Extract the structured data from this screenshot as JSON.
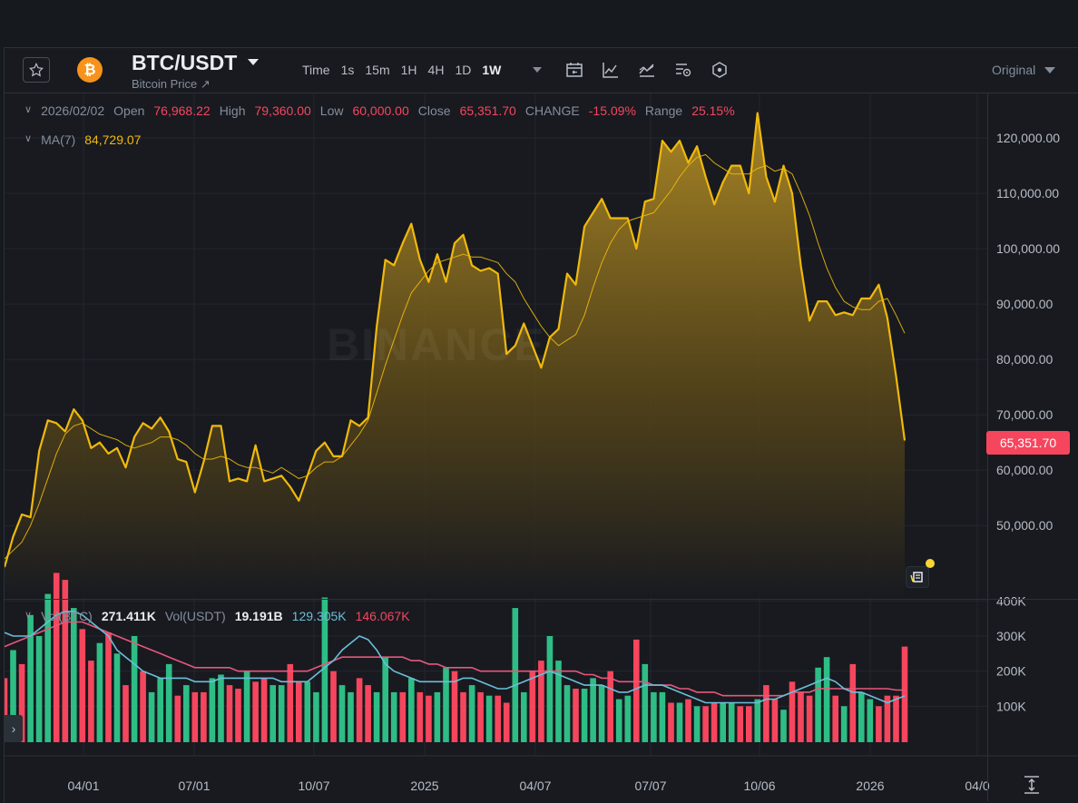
{
  "toolbar": {
    "pair": "BTC/USDT",
    "subtitle": "Bitcoin Price ↗",
    "coin_symbol": "₿",
    "intervals": [
      "Time",
      "1s",
      "15m",
      "1H",
      "4H",
      "1D",
      "1W"
    ],
    "active_interval": "1W",
    "price_type": "Original",
    "icons": [
      "star-icon",
      "bitcoin-icon",
      "calendar-replay-icon",
      "indicator-icon",
      "chart-type-icon",
      "settings-icon",
      "hexagon-icon",
      "chevron-down-icon"
    ]
  },
  "ohlc": {
    "date": "2026/02/02",
    "open_label": "Open",
    "open": "76,968.22",
    "high_label": "High",
    "high": "79,360.00",
    "low_label": "Low",
    "low": "60,000.00",
    "close_label": "Close",
    "close": "65,351.70",
    "change_label": "CHANGE",
    "change": "-15.09%",
    "range_label": "Range",
    "range": "25.15%"
  },
  "ma": {
    "label": "MA(7)",
    "value": "84,729.07"
  },
  "volume_legend": {
    "label": "Vol(BTC)",
    "btc": "271.411K",
    "usdt_label": "Vol(USDT)",
    "usdt": "19.191B",
    "ma1": "129.305K",
    "ma2": "146.067K"
  },
  "current_price": "65,351.70",
  "watermark": "BINANCE",
  "colors": {
    "up": "#2ebd85",
    "down": "#f6465d",
    "accent": "#f0b90b",
    "ma_blue": "#6bbfd9",
    "ma_pink": "#e8577b"
  },
  "chart_data": [
    {
      "type": "area",
      "y_ticks": [
        "120,000.00",
        "110,000.00",
        "100,000.00",
        "90,000.00",
        "80,000.00",
        "70,000.00",
        "60,000.00",
        "50,000.00"
      ],
      "x_ticks": [
        "04/01",
        "07/01",
        "10/07",
        "2025",
        "04/07",
        "07/07",
        "10/06",
        "2026",
        "04/0"
      ],
      "ylim": [
        40000,
        125000
      ],
      "series": [
        {
          "values": [
            42500,
            48000,
            52000,
            51500,
            63500,
            69000,
            68500,
            67000,
            71000,
            69000,
            64000,
            65000,
            63000,
            64000,
            60500,
            66000,
            68500,
            67500,
            69500,
            67000,
            62000,
            61500,
            56000,
            61500,
            68000,
            68000,
            58000,
            58500,
            58000,
            64500,
            58000,
            58500,
            59000,
            57000,
            54500,
            59000,
            63500,
            65000,
            62500,
            62500,
            69000,
            68000,
            69500,
            86000,
            98000,
            97000,
            101000,
            104500,
            98000,
            94000,
            99000,
            94000,
            101000,
            102500,
            97000,
            96000,
            96500,
            95500,
            81000,
            82500,
            86500,
            82500,
            78500,
            84000,
            85500,
            95500,
            93500,
            104000,
            106500,
            109000,
            105500,
            105500,
            105500,
            100000,
            108500,
            109000,
            119500,
            117500,
            119500,
            115500,
            118500,
            113000,
            108000,
            112000,
            115000,
            115000,
            110000,
            124500,
            113000,
            108500,
            115000,
            110000,
            97000,
            87000,
            90500,
            90500,
            88000,
            88500,
            88000,
            91000,
            91000,
            93500,
            87500,
            77000,
            65351.7
          ]
        },
        {
          "values": [
            44000,
            45500,
            47000,
            50000,
            54000,
            58500,
            63000,
            66500,
            68000,
            68500,
            67500,
            66500,
            66000,
            65500,
            64500,
            64000,
            64500,
            65000,
            66000,
            66000,
            65500,
            64500,
            63000,
            62000,
            62000,
            62500,
            62000,
            61000,
            60500,
            60500,
            60000,
            59500,
            60500,
            59500,
            58500,
            59000,
            60500,
            61500,
            61500,
            62500,
            64500,
            66500,
            69000,
            74000,
            79000,
            83500,
            88000,
            92000,
            94000,
            96000,
            97500,
            98000,
            98500,
            99000,
            98500,
            98500,
            98000,
            97500,
            95500,
            94000,
            91000,
            88500,
            86000,
            84000,
            82500,
            83500,
            84500,
            88000,
            93000,
            97500,
            101000,
            103500,
            105000,
            105500,
            106000,
            106500,
            108500,
            110500,
            113000,
            115000,
            116500,
            117000,
            115500,
            114500,
            113500,
            113500,
            113500,
            114500,
            115000,
            114000,
            114500,
            113500,
            110000,
            106000,
            101000,
            96500,
            93000,
            90500,
            89500,
            89000,
            89000,
            90500,
            91000,
            88000,
            84729.07
          ]
        }
      ]
    },
    {
      "type": "bar",
      "y_ticks": [
        "400K",
        "300K",
        "200K",
        "100K"
      ],
      "ylim": [
        0,
        450000
      ],
      "volumes": [
        180000,
        260000,
        220000,
        360000,
        300000,
        420000,
        480000,
        460000,
        380000,
        320000,
        230000,
        280000,
        310000,
        250000,
        160000,
        300000,
        200000,
        140000,
        180000,
        220000,
        130000,
        160000,
        140000,
        140000,
        180000,
        190000,
        160000,
        150000,
        200000,
        170000,
        180000,
        160000,
        160000,
        220000,
        170000,
        170000,
        140000,
        410000,
        200000,
        160000,
        140000,
        180000,
        160000,
        140000,
        240000,
        140000,
        140000,
        180000,
        140000,
        130000,
        140000,
        210000,
        200000,
        140000,
        160000,
        140000,
        130000,
        130000,
        110000,
        380000,
        140000,
        200000,
        230000,
        300000,
        230000,
        160000,
        150000,
        150000,
        180000,
        160000,
        200000,
        120000,
        130000,
        290000,
        220000,
        140000,
        140000,
        110000,
        110000,
        120000,
        100000,
        100000,
        110000,
        110000,
        110000,
        100000,
        100000,
        120000,
        160000,
        120000,
        90000,
        170000,
        140000,
        130000,
        210000,
        240000,
        130000,
        100000,
        220000,
        140000,
        120000,
        100000,
        130000,
        130000,
        270000
      ],
      "ma_blue": [
        310000,
        300000,
        300000,
        300000,
        320000,
        340000,
        360000,
        370000,
        370000,
        360000,
        340000,
        320000,
        300000,
        260000,
        240000,
        220000,
        200000,
        190000,
        180000,
        180000,
        180000,
        180000,
        170000,
        170000,
        170000,
        180000,
        180000,
        180000,
        180000,
        180000,
        180000,
        180000,
        170000,
        170000,
        170000,
        170000,
        190000,
        210000,
        230000,
        260000,
        280000,
        300000,
        290000,
        260000,
        220000,
        200000,
        190000,
        180000,
        170000,
        170000,
        170000,
        170000,
        170000,
        180000,
        180000,
        170000,
        160000,
        150000,
        150000,
        160000,
        170000,
        180000,
        190000,
        200000,
        190000,
        180000,
        170000,
        160000,
        160000,
        160000,
        150000,
        140000,
        140000,
        150000,
        160000,
        160000,
        160000,
        150000,
        140000,
        130000,
        120000,
        110000,
        110000,
        110000,
        110000,
        110000,
        110000,
        110000,
        120000,
        120000,
        130000,
        140000,
        150000,
        160000,
        170000,
        180000,
        170000,
        150000,
        140000,
        140000,
        130000,
        120000,
        110000,
        120000,
        129305
      ],
      "ma_pink": [
        270000,
        280000,
        290000,
        300000,
        310000,
        320000,
        330000,
        340000,
        340000,
        340000,
        330000,
        320000,
        310000,
        300000,
        290000,
        280000,
        270000,
        260000,
        250000,
        240000,
        230000,
        220000,
        210000,
        210000,
        210000,
        210000,
        210000,
        200000,
        200000,
        200000,
        200000,
        200000,
        200000,
        200000,
        200000,
        200000,
        210000,
        220000,
        230000,
        240000,
        240000,
        240000,
        240000,
        240000,
        240000,
        240000,
        240000,
        230000,
        230000,
        220000,
        220000,
        210000,
        210000,
        210000,
        210000,
        200000,
        200000,
        200000,
        200000,
        200000,
        200000,
        200000,
        200000,
        200000,
        200000,
        200000,
        200000,
        190000,
        190000,
        180000,
        180000,
        170000,
        170000,
        170000,
        170000,
        160000,
        160000,
        160000,
        150000,
        150000,
        140000,
        140000,
        140000,
        130000,
        130000,
        130000,
        130000,
        130000,
        130000,
        130000,
        130000,
        140000,
        140000,
        140000,
        150000,
        150000,
        150000,
        150000,
        150000,
        150000,
        150000,
        150000,
        150000,
        146000,
        146067
      ],
      "directions": [
        "d",
        "u",
        "d",
        "u",
        "u",
        "u",
        "d",
        "d",
        "u",
        "d",
        "d",
        "u",
        "d",
        "u",
        "d",
        "u",
        "d",
        "u",
        "u",
        "u",
        "d",
        "u",
        "d",
        "d",
        "u",
        "u",
        "d",
        "d",
        "u",
        "d",
        "d",
        "u",
        "u",
        "d",
        "d",
        "u",
        "u",
        "u",
        "d",
        "u",
        "u",
        "d",
        "d",
        "u",
        "u",
        "u",
        "d",
        "u",
        "d",
        "d",
        "u",
        "u",
        "d",
        "d",
        "u",
        "d",
        "u",
        "d",
        "d",
        "u",
        "u",
        "d",
        "d",
        "u",
        "u",
        "u",
        "d",
        "u",
        "u",
        "u",
        "d",
        "u",
        "u",
        "d",
        "u",
        "u",
        "u",
        "d",
        "u",
        "d",
        "u",
        "d",
        "d",
        "u",
        "u",
        "d",
        "d",
        "u",
        "d",
        "d",
        "u",
        "d",
        "d",
        "d",
        "u",
        "u",
        "d",
        "u",
        "d",
        "u",
        "u",
        "d",
        "d",
        "d",
        "d"
      ]
    }
  ]
}
